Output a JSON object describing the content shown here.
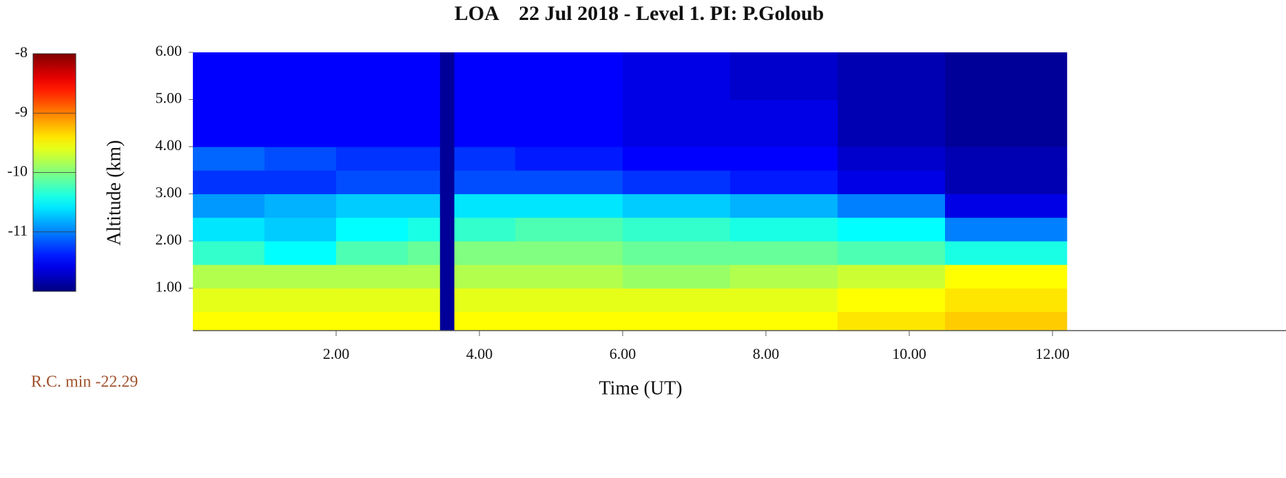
{
  "chart_data": {
    "type": "heatmap",
    "title": "LOA    22 Jul 2018 - Level 1. PI: P.Goloub",
    "x_label": "Time (UT)",
    "y_label": "Altitude (km)",
    "annotation": "R.C. min -22.29",
    "x_edges": [
      0,
      1,
      2,
      3,
      3.45,
      3.65,
      4.5,
      6,
      7.5,
      9,
      10.5,
      12.2
    ],
    "y_edges": [
      0.1,
      0.5,
      1,
      1.5,
      2,
      2.5,
      3,
      3.5,
      4,
      5,
      6
    ],
    "z": [
      [
        -9.5,
        -9.5,
        -9.5,
        -9.5,
        -11.9,
        -9.5,
        -9.5,
        -9.5,
        -9.5,
        -9.4,
        -9.3
      ],
      [
        -9.6,
        -9.6,
        -9.6,
        -9.6,
        -11.9,
        -9.6,
        -9.6,
        -9.6,
        -9.6,
        -9.5,
        -9.4
      ],
      [
        -9.8,
        -9.8,
        -9.8,
        -9.8,
        -11.9,
        -9.8,
        -9.8,
        -9.9,
        -9.8,
        -9.7,
        -9.5
      ],
      [
        -10.3,
        -10.5,
        -10.2,
        -10.1,
        -11.9,
        -10.0,
        -10.0,
        -10.1,
        -10.1,
        -10.2,
        -10.4
      ],
      [
        -10.6,
        -10.7,
        -10.5,
        -10.4,
        -11.9,
        -10.3,
        -10.2,
        -10.3,
        -10.4,
        -10.5,
        -11.0
      ],
      [
        -10.9,
        -10.8,
        -10.7,
        -10.7,
        -11.9,
        -10.6,
        -10.6,
        -10.7,
        -10.8,
        -11.0,
        -11.6
      ],
      [
        -11.3,
        -11.3,
        -11.2,
        -11.2,
        -11.9,
        -11.2,
        -11.2,
        -11.3,
        -11.4,
        -11.6,
        -11.8
      ],
      [
        -11.1,
        -11.2,
        -11.3,
        -11.3,
        -11.9,
        -11.3,
        -11.4,
        -11.5,
        -11.5,
        -11.7,
        -11.8
      ],
      [
        -11.5,
        -11.5,
        -11.5,
        -11.5,
        -11.9,
        -11.5,
        -11.5,
        -11.6,
        -11.6,
        -11.8,
        -11.9
      ],
      [
        -11.5,
        -11.5,
        -11.5,
        -11.5,
        -11.9,
        -11.5,
        -11.5,
        -11.6,
        -11.7,
        -11.8,
        -11.9
      ]
    ],
    "xlim": [
      0,
      15.26
    ],
    "ylim": [
      0.1,
      6
    ],
    "xticks": [
      {
        "value": 2,
        "label": "2.00"
      },
      {
        "value": 4,
        "label": "4.00"
      },
      {
        "value": 6,
        "label": "6.00"
      },
      {
        "value": 8,
        "label": "8.00"
      },
      {
        "value": 10,
        "label": "10.00"
      },
      {
        "value": 12,
        "label": "12.00"
      }
    ],
    "yticks": [
      {
        "value": 1,
        "label": "1.00"
      },
      {
        "value": 2,
        "label": "2.00"
      },
      {
        "value": 3,
        "label": "3.00"
      },
      {
        "value": 4,
        "label": "4.00"
      },
      {
        "value": 5,
        "label": "5.00"
      },
      {
        "value": 6,
        "label": "6.00"
      }
    ],
    "zlim": [
      -12,
      -8
    ],
    "zticks": [
      -8,
      -9,
      -10,
      -11
    ],
    "colormap": "jet"
  }
}
